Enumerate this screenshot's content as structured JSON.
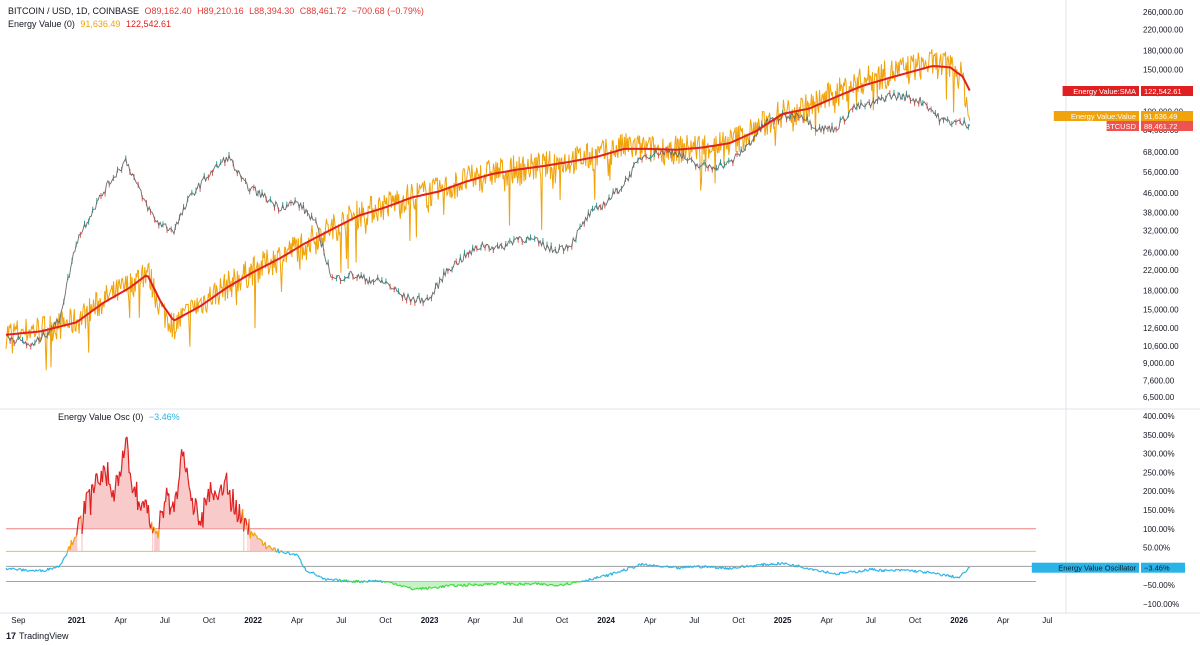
{
  "header": {
    "symbol": "BITCOIN / USD, 1D, COINBASE",
    "open": "O89,162.40",
    "high": "H89,210.16",
    "low": "L88,394.30",
    "close": "C88,461.72",
    "change": "−700.68 (−0.79%)",
    "indicator_name": "Energy Value (0)",
    "indicator_value": "91,636.49",
    "indicator_sma": "122,542.61"
  },
  "osc_header": {
    "name": "Energy Value Osc (0)",
    "value": "−3.46%"
  },
  "brand": {
    "logo": "17",
    "name": "TradingView"
  },
  "colors": {
    "price_up": "#26a69a",
    "price_down": "#ef5350",
    "price_line": "#6b6b6b",
    "energy_value": "#f0a30a",
    "energy_sma": "#e02020",
    "osc_high": "#e02020",
    "osc_mid": "#f0a30a",
    "osc_low": "#3ddc3d",
    "osc_neutral": "#2ab3e6",
    "level_100": "#f08080",
    "level_40": "#e0c060",
    "level_0": "#9e9e9e",
    "level_neg40": "#5cd65c"
  },
  "chart_data": [
    {
      "type": "line",
      "scale": "log",
      "y_ticks": [
        "260,000.00",
        "220,000.00",
        "180,000.00",
        "150,000.00",
        "120,000.00",
        "100,000.00",
        "84,000.00",
        "68,000.00",
        "56,000.00",
        "46,000.00",
        "38,000.00",
        "32,000.00",
        "26,000.00",
        "22,000.00",
        "18,000.00",
        "15,000.00",
        "12,600.00",
        "10,600.00",
        "9,000.00",
        "7,600.00",
        "6,500.00"
      ],
      "y_tick_values": [
        260000,
        220000,
        180000,
        150000,
        120000,
        100000,
        84000,
        68000,
        56000,
        46000,
        38000,
        32000,
        26000,
        22000,
        18000,
        15000,
        12600,
        10600,
        9000,
        7600,
        6500
      ],
      "x_ticks": [
        "Sep",
        "2021",
        "Apr",
        "Jul",
        "Oct",
        "2022",
        "Apr",
        "Jul",
        "Oct",
        "2023",
        "Apr",
        "Jul",
        "Oct",
        "2024",
        "Apr",
        "Jul",
        "Oct",
        "2025",
        "Apr",
        "Jul",
        "Oct",
        "2026",
        "Apr",
        "Jul"
      ],
      "x_tick_values": [
        2020.67,
        2021.0,
        2021.25,
        2021.5,
        2021.75,
        2022.0,
        2022.25,
        2022.5,
        2022.75,
        2023.0,
        2023.25,
        2023.5,
        2023.75,
        2024.0,
        2024.25,
        2024.5,
        2024.75,
        2025.0,
        2025.25,
        2025.5,
        2025.75,
        2026.0,
        2026.25,
        2026.5
      ],
      "x_range": [
        2020.6,
        2026.6
      ],
      "grid": false,
      "series": [
        {
          "name": "BTCUSD",
          "x": [
            2020.6,
            2020.75,
            2020.9,
            2021.0,
            2021.1,
            2021.18,
            2021.28,
            2021.38,
            2021.45,
            2021.55,
            2021.65,
            2021.75,
            2021.86,
            2021.95,
            2022.05,
            2022.15,
            2022.25,
            2022.35,
            2022.45,
            2022.55,
            2022.65,
            2022.75,
            2022.85,
            2022.92,
            2023.0,
            2023.1,
            2023.2,
            2023.3,
            2023.4,
            2023.5,
            2023.6,
            2023.7,
            2023.8,
            2023.9,
            2024.0,
            2024.1,
            2024.2,
            2024.3,
            2024.4,
            2024.5,
            2024.6,
            2024.7,
            2024.8,
            2024.9,
            2025.0,
            2025.1,
            2025.2,
            2025.3,
            2025.4,
            2025.5,
            2025.6,
            2025.7,
            2025.8,
            2025.9,
            2026.0,
            2026.06
          ],
          "values": [
            11700,
            10600,
            13500,
            29000,
            40000,
            50000,
            63000,
            43000,
            35000,
            32000,
            45000,
            55000,
            65000,
            50000,
            45000,
            40000,
            42000,
            35000,
            20000,
            21000,
            20000,
            19500,
            17000,
            16500,
            16600,
            22000,
            25000,
            28000,
            27000,
            30000,
            29000,
            26500,
            28000,
            37000,
            42000,
            50000,
            65000,
            68000,
            68000,
            60000,
            59000,
            61000,
            72000,
            90000,
            95000,
            98000,
            85000,
            85000,
            104000,
            107000,
            117000,
            115000,
            110000,
            92000,
            90000,
            88461
          ]
        },
        {
          "name": "Energy Value:Value",
          "x": [
            2020.6,
            2020.8,
            2021.0,
            2021.15,
            2021.3,
            2021.4,
            2021.48,
            2021.55,
            2021.7,
            2021.85,
            2022.0,
            2022.15,
            2022.3,
            2022.45,
            2022.6,
            2022.75,
            2022.9,
            2023.05,
            2023.2,
            2023.35,
            2023.5,
            2023.65,
            2023.8,
            2023.95,
            2024.1,
            2024.25,
            2024.4,
            2024.55,
            2024.7,
            2024.85,
            2025.0,
            2025.15,
            2025.3,
            2025.45,
            2025.6,
            2025.75,
            2025.85,
            2025.95,
            2026.02,
            2026.06
          ],
          "values": [
            12000,
            12500,
            13500,
            16500,
            19000,
            22000,
            15000,
            13000,
            16000,
            19000,
            22000,
            25000,
            29000,
            33000,
            38000,
            41000,
            45000,
            47000,
            52000,
            56000,
            58000,
            60000,
            63000,
            66000,
            72000,
            70000,
            70000,
            72000,
            75000,
            85000,
            100000,
            105000,
            120000,
            135000,
            145000,
            155000,
            160000,
            155000,
            140000,
            91636
          ]
        },
        {
          "name": "Energy Value:SMA",
          "x": [
            2020.6,
            2020.8,
            2021.0,
            2021.15,
            2021.3,
            2021.4,
            2021.48,
            2021.55,
            2021.7,
            2021.85,
            2022.0,
            2022.15,
            2022.3,
            2022.45,
            2022.6,
            2022.75,
            2022.9,
            2023.05,
            2023.2,
            2023.35,
            2023.5,
            2023.65,
            2023.8,
            2023.95,
            2024.1,
            2024.25,
            2024.4,
            2024.55,
            2024.7,
            2024.85,
            2025.0,
            2025.15,
            2025.3,
            2025.45,
            2025.6,
            2025.75,
            2025.85,
            2025.95,
            2026.02,
            2026.06
          ],
          "values": [
            11800,
            12200,
            13300,
            16000,
            18500,
            21000,
            16000,
            13500,
            15500,
            18500,
            21500,
            24500,
            28500,
            32500,
            37000,
            40000,
            44000,
            46500,
            51000,
            55000,
            57500,
            59500,
            62000,
            65000,
            70000,
            70000,
            69500,
            71000,
            74000,
            83000,
            98000,
            103000,
            115000,
            128000,
            138000,
            148000,
            155000,
            153000,
            140000,
            122542
          ]
        }
      ],
      "labels": [
        {
          "name": "Energy Value:SMA",
          "text": "Energy Value:SMA",
          "value": "122,542.61",
          "y": 122542
        },
        {
          "name": "Energy Value:Value",
          "text": "Energy Value:Value",
          "value": "91,636.49",
          "y": 91636
        },
        {
          "name": "BTCUSD",
          "text": "BTCUSD",
          "value": "88,461.72",
          "y": 88461
        }
      ]
    },
    {
      "type": "area",
      "y_ticks": [
        "400.00%",
        "350.00%",
        "300.00%",
        "250.00%",
        "200.00%",
        "150.00%",
        "100.00%",
        "50.00%",
        "−50.00%",
        "−100.00%"
      ],
      "y_tick_values": [
        400,
        350,
        300,
        250,
        200,
        150,
        100,
        50,
        -50,
        -100
      ],
      "y_range": [
        -100,
        400
      ],
      "levels": [
        100,
        40,
        0,
        -40
      ],
      "series": [
        {
          "name": "Energy Value Oscillator",
          "x": [
            2020.6,
            2020.7,
            2020.8,
            2020.9,
            2020.95,
            2021.0,
            2021.05,
            2021.1,
            2021.15,
            2021.2,
            2021.25,
            2021.28,
            2021.32,
            2021.4,
            2021.45,
            2021.5,
            2021.55,
            2021.6,
            2021.65,
            2021.7,
            2021.75,
            2021.8,
            2021.85,
            2021.9,
            2021.95,
            2022.0,
            2022.05,
            2022.15,
            2022.25,
            2022.3,
            2022.35,
            2022.4,
            2022.5,
            2022.6,
            2022.7,
            2022.8,
            2022.9,
            2023.0,
            2023.1,
            2023.2,
            2023.3,
            2023.4,
            2023.5,
            2023.6,
            2023.7,
            2023.8,
            2023.9,
            2024.0,
            2024.1,
            2024.2,
            2024.3,
            2024.4,
            2024.5,
            2024.6,
            2024.7,
            2024.8,
            2024.9,
            2025.0,
            2025.1,
            2025.2,
            2025.3,
            2025.4,
            2025.5,
            2025.6,
            2025.7,
            2025.8,
            2025.9,
            2026.0,
            2026.06
          ],
          "values": [
            -5,
            -10,
            -12,
            0,
            40,
            90,
            160,
            220,
            240,
            200,
            260,
            340,
            190,
            150,
            80,
            190,
            140,
            300,
            180,
            120,
            200,
            170,
            230,
            150,
            120,
            90,
            60,
            40,
            30,
            -10,
            -20,
            -35,
            -38,
            -40,
            -38,
            -45,
            -60,
            -58,
            -52,
            -50,
            -48,
            -45,
            -48,
            -47,
            -50,
            -45,
            -35,
            -25,
            -10,
            5,
            0,
            -5,
            0,
            -2,
            -5,
            0,
            5,
            8,
            0,
            -10,
            -20,
            -15,
            -8,
            -12,
            -10,
            -15,
            -22,
            -30,
            -3.46
          ]
        }
      ],
      "labels": [
        {
          "text": "Energy Value Oscillator",
          "value": "−3.46%",
          "y": -3.46
        }
      ]
    }
  ]
}
